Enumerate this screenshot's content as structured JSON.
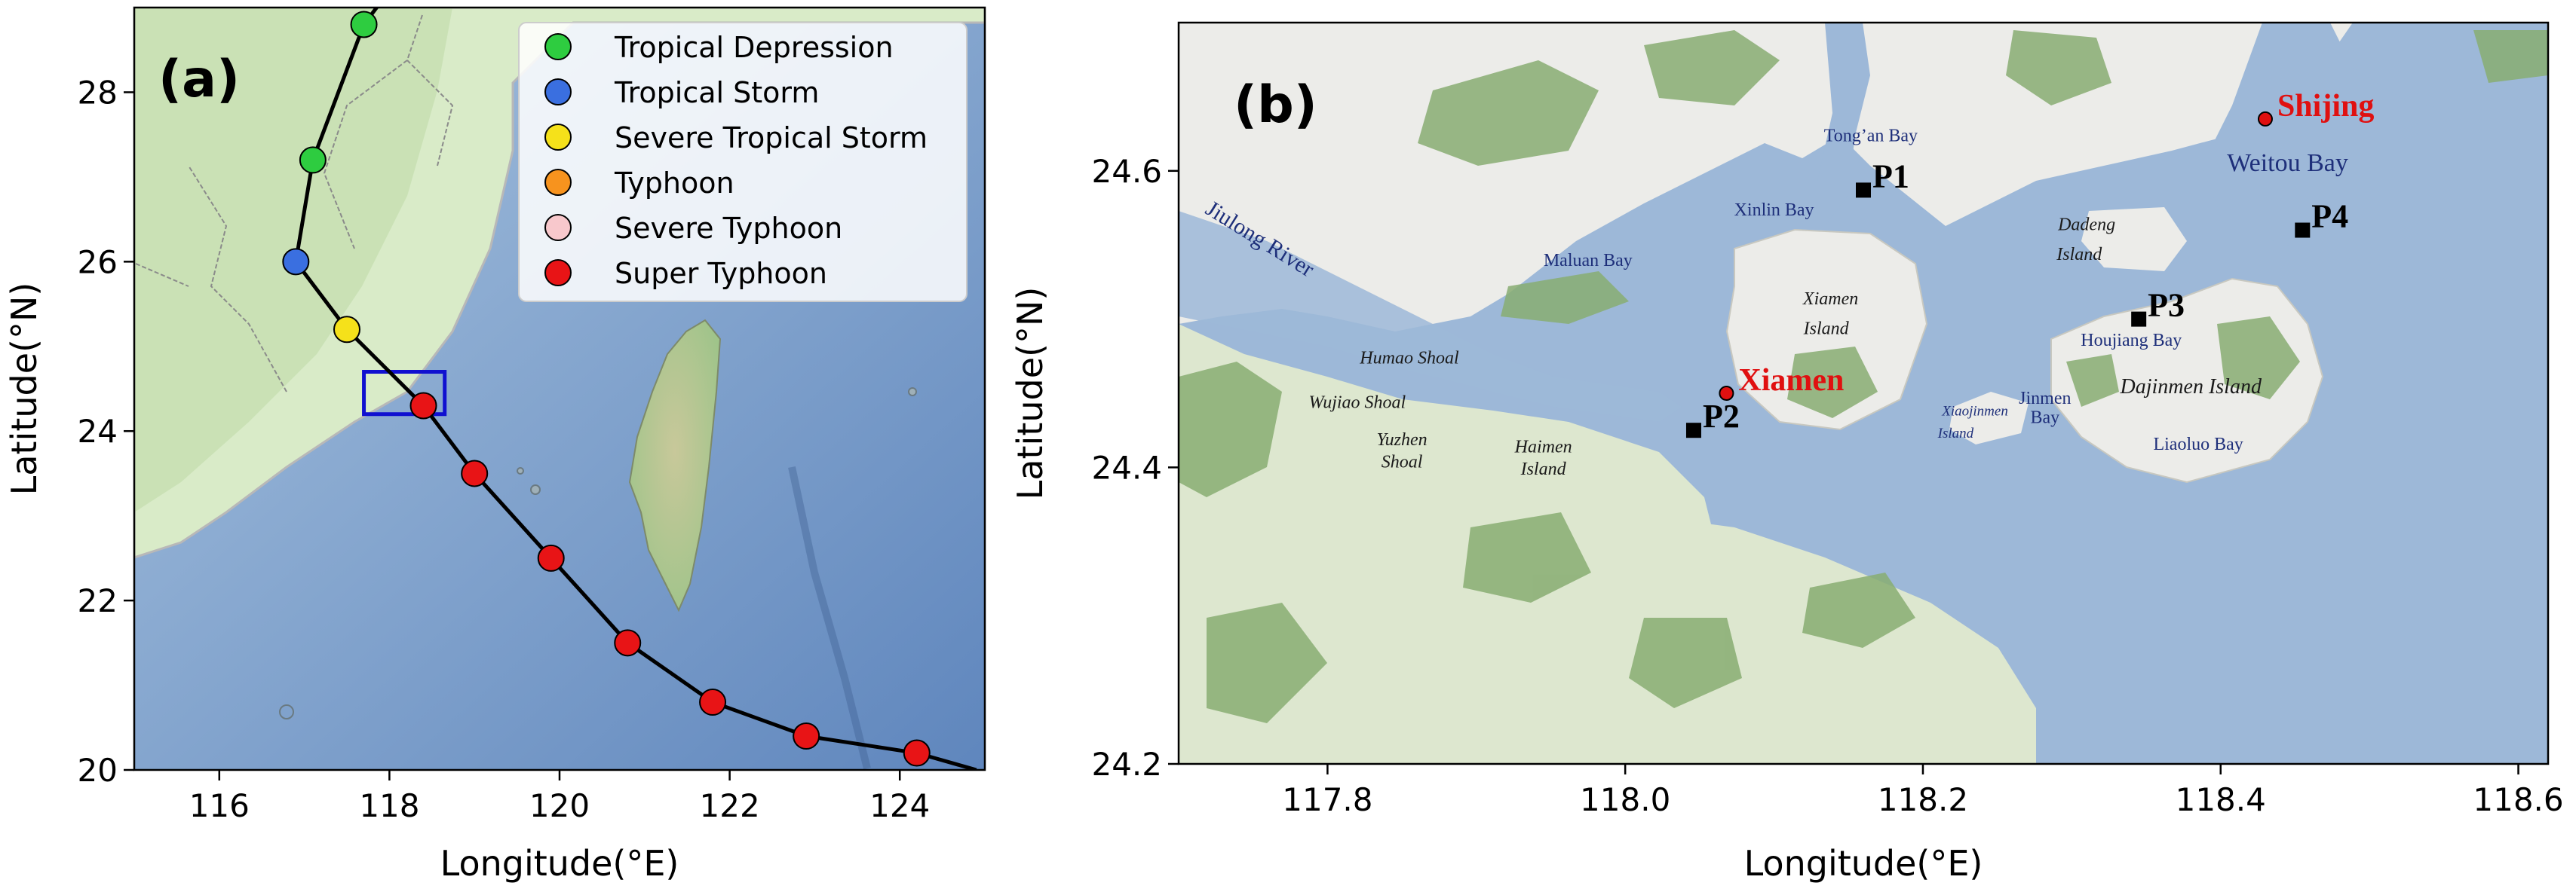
{
  "panel_a": {
    "label": "(a)",
    "xlabel": "Longitude(°E)",
    "ylabel": "Latitude(°N)",
    "xlim": [
      115,
      125
    ],
    "ylim": [
      20,
      29
    ],
    "xticks": [
      "116",
      "118",
      "120",
      "122",
      "124"
    ],
    "yticks": [
      "20",
      "22",
      "24",
      "26",
      "28"
    ],
    "legend": [
      {
        "label": "Tropical Depression",
        "color": "#2ecc40"
      },
      {
        "label": "Tropical Storm",
        "color": "#3a6fe0"
      },
      {
        "label": "Severe Tropical Storm",
        "color": "#f5e11a"
      },
      {
        "label": "Typhoon",
        "color": "#f7931e"
      },
      {
        "label": "Severe Typhoon",
        "color": "#f8c8cc"
      },
      {
        "label": "Super Typhoon",
        "color": "#e81416"
      }
    ],
    "track": [
      {
        "lon": 124.2,
        "lat": 20.2,
        "category": "Super Typhoon"
      },
      {
        "lon": 122.9,
        "lat": 20.4,
        "category": "Super Typhoon"
      },
      {
        "lon": 121.8,
        "lat": 20.8,
        "category": "Super Typhoon"
      },
      {
        "lon": 120.8,
        "lat": 21.5,
        "category": "Super Typhoon"
      },
      {
        "lon": 119.9,
        "lat": 22.5,
        "category": "Super Typhoon"
      },
      {
        "lon": 119.0,
        "lat": 23.5,
        "category": "Super Typhoon"
      },
      {
        "lon": 118.4,
        "lat": 24.3,
        "category": "Super Typhoon"
      },
      {
        "lon": 117.5,
        "lat": 25.2,
        "category": "Severe Tropical Storm"
      },
      {
        "lon": 116.9,
        "lat": 26.0,
        "category": "Tropical Storm"
      },
      {
        "lon": 117.1,
        "lat": 27.2,
        "category": "Tropical Depression"
      },
      {
        "lon": 117.7,
        "lat": 28.8,
        "category": "Tropical Depression"
      }
    ],
    "study_box": {
      "lon": [
        117.7,
        118.65
      ],
      "lat": [
        24.2,
        24.7
      ],
      "color": "#1010d0"
    }
  },
  "panel_b": {
    "label": "(b)",
    "xlabel": "Longitude(°E)",
    "ylabel": "Latitude(°N)",
    "xlim": [
      117.7,
      118.62
    ],
    "ylim": [
      24.2,
      24.7
    ],
    "xticks": [
      "117.8",
      "118.0",
      "118.2",
      "118.4",
      "118.6"
    ],
    "yticks": [
      "24.2",
      "24.4",
      "24.6"
    ],
    "cities": [
      {
        "name": "Xiamen",
        "lon": 118.068,
        "lat": 24.45,
        "color": "#e01010"
      },
      {
        "name": "Shijing",
        "lon": 118.43,
        "lat": 24.635,
        "color": "#e01010"
      }
    ],
    "stations": [
      {
        "name": "P1",
        "lon": 118.16,
        "lat": 24.587
      },
      {
        "name": "P2",
        "lon": 118.046,
        "lat": 24.425
      },
      {
        "name": "P3",
        "lon": 118.345,
        "lat": 24.5
      },
      {
        "name": "P4",
        "lon": 118.455,
        "lat": 24.56
      }
    ],
    "place_labels": [
      {
        "text": "Tong’an Bay",
        "lon": 118.165,
        "lat": 24.62,
        "style": "bay"
      },
      {
        "text": "Xinlin Bay",
        "lon": 118.1,
        "lat": 24.57,
        "style": "bay"
      },
      {
        "text": "Maluan Bay",
        "lon": 117.975,
        "lat": 24.536,
        "style": "bay"
      },
      {
        "text": "Weitou Bay",
        "lon": 118.445,
        "lat": 24.6,
        "style": "bay"
      },
      {
        "text": "Houjiang Bay",
        "lon": 118.34,
        "lat": 24.482,
        "style": "bay"
      },
      {
        "text": "Jinmen",
        "lon": 118.282,
        "lat": 24.443,
        "style": "bay"
      },
      {
        "text": "Bay",
        "lon": 118.282,
        "lat": 24.43,
        "style": "bay"
      },
      {
        "text": "Liaoluo Bay",
        "lon": 118.385,
        "lat": 24.412,
        "style": "bay"
      },
      {
        "text": "Xiaojinmen",
        "lon": 118.235,
        "lat": 24.435,
        "style": "island_small"
      },
      {
        "text": "Island",
        "lon": 118.222,
        "lat": 24.42,
        "style": "island_small"
      },
      {
        "text": "Xiamen",
        "lon": 118.138,
        "lat": 24.51,
        "style": "island"
      },
      {
        "text": "Island",
        "lon": 118.135,
        "lat": 24.49,
        "style": "island"
      },
      {
        "text": "Dadeng",
        "lon": 118.31,
        "lat": 24.56,
        "style": "island"
      },
      {
        "text": "Island",
        "lon": 118.305,
        "lat": 24.54,
        "style": "island"
      },
      {
        "text": "Dajinmen Island",
        "lon": 118.38,
        "lat": 24.45,
        "style": "island_big"
      },
      {
        "text": "Humao Shoal",
        "lon": 117.855,
        "lat": 24.47,
        "style": "island"
      },
      {
        "text": "Wujiao Shoal",
        "lon": 117.82,
        "lat": 24.44,
        "style": "island"
      },
      {
        "text": "Yuzhen",
        "lon": 117.85,
        "lat": 24.415,
        "style": "island"
      },
      {
        "text": "Shoal",
        "lon": 117.85,
        "lat": 24.4,
        "style": "island"
      },
      {
        "text": "Haimen",
        "lon": 117.945,
        "lat": 24.41,
        "style": "island"
      },
      {
        "text": "Island",
        "lon": 117.945,
        "lat": 24.395,
        "style": "island"
      },
      {
        "text": "Jiulong River",
        "lon": 117.752,
        "lat": 24.55,
        "style": "river"
      }
    ]
  }
}
